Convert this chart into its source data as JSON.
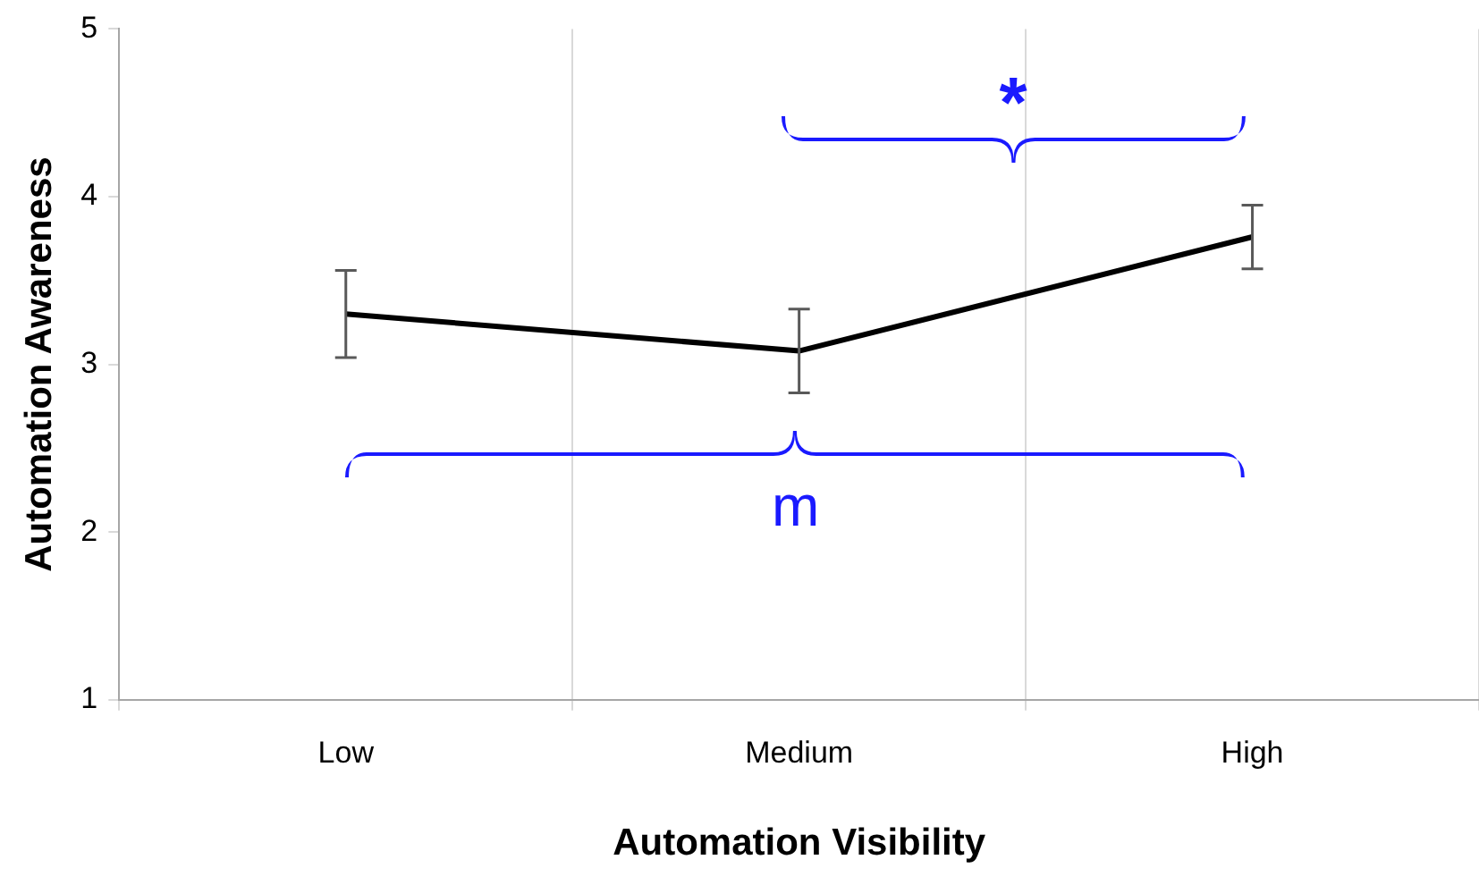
{
  "chart_data": {
    "type": "line",
    "xlabel": "Automation Visibility",
    "ylabel": "Automation Awareness",
    "categories": [
      "Low",
      "Medium",
      "High"
    ],
    "series": [
      {
        "color": "#000000",
        "values": [
          3.3,
          3.08,
          3.76
        ],
        "errors": [
          0.26,
          0.25,
          0.19
        ]
      }
    ],
    "ylim": [
      1,
      5
    ],
    "yticks": [
      1,
      2,
      3,
      4,
      5
    ],
    "grid": "x",
    "legend": false,
    "marker": "none",
    "annotations": [
      "*",
      "m"
    ]
  }
}
